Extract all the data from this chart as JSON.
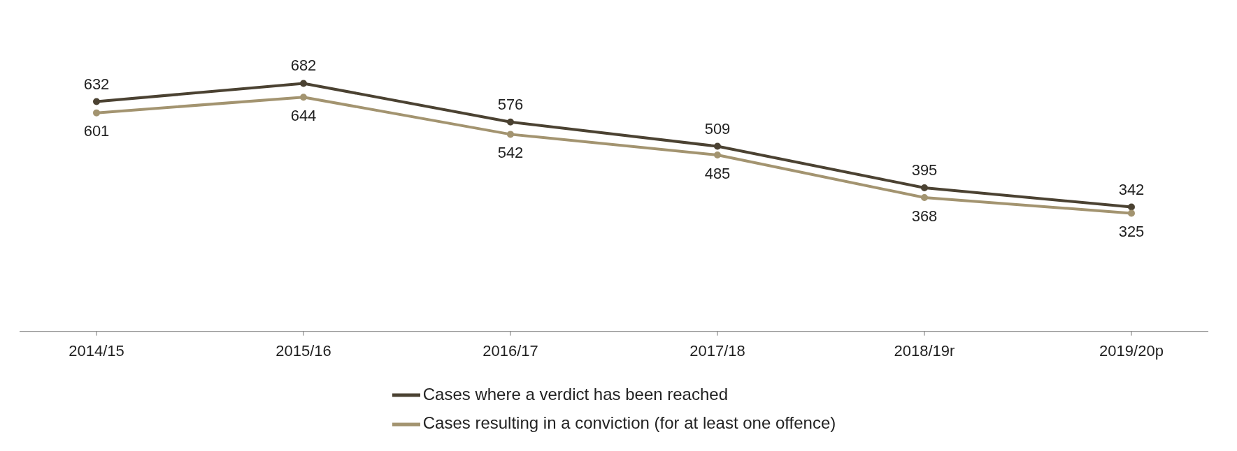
{
  "chart_data": {
    "type": "line",
    "categories": [
      "2014/15",
      "2015/16",
      "2016/17",
      "2017/18",
      "2018/19r",
      "2019/20p"
    ],
    "series": [
      {
        "name": "Cases where a verdict has been reached",
        "color": "#4b4232",
        "values": [
          632,
          682,
          576,
          509,
          395,
          342
        ]
      },
      {
        "name": "Cases resulting in a conviction (for at least one offence)",
        "color": "#a39470",
        "values": [
          601,
          644,
          542,
          485,
          368,
          325
        ]
      }
    ],
    "data_labels": true,
    "marker": "circle",
    "legend": "bottom",
    "grid": false
  }
}
